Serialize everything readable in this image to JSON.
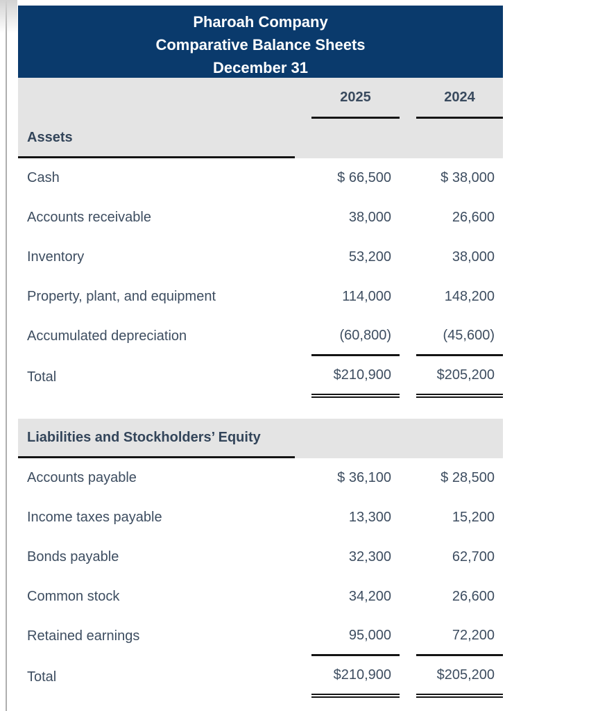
{
  "theme": {
    "header_bg": "#0a3a6c",
    "band_bg": "#e4e4e4",
    "text_color": "#3d4d60"
  },
  "header": {
    "company": "Pharoah Company",
    "title": "Comparative Balance Sheets",
    "date": "December 31"
  },
  "columns": {
    "col1": "2025",
    "col2": "2024"
  },
  "sections": [
    {
      "title": "Assets",
      "rows": [
        {
          "label": "Cash",
          "y2025": "$ 66,500",
          "y2024": "$ 38,000"
        },
        {
          "label": "Accounts receivable",
          "y2025": "38,000",
          "y2024": "26,600"
        },
        {
          "label": "Inventory",
          "y2025": "53,200",
          "y2024": "38,000"
        },
        {
          "label": "Property, plant, and equipment",
          "y2025": "114,000",
          "y2024": "148,200"
        },
        {
          "label": "Accumulated depreciation",
          "y2025": "(60,800)",
          "y2024": "(45,600)"
        }
      ],
      "total": {
        "label": "Total",
        "y2025": "$210,900",
        "y2024": "$205,200"
      }
    },
    {
      "title": "Liabilities and Stockholders’ Equity",
      "rows": [
        {
          "label": "Accounts payable",
          "y2025": "$ 36,100",
          "y2024": "$ 28,500"
        },
        {
          "label": "Income taxes payable",
          "y2025": "13,300",
          "y2024": "15,200"
        },
        {
          "label": "Bonds payable",
          "y2025": "32,300",
          "y2024": "62,700"
        },
        {
          "label": "Common stock",
          "y2025": "34,200",
          "y2024": "26,600"
        },
        {
          "label": "Retained earnings",
          "y2025": "95,000",
          "y2024": "72,200"
        }
      ],
      "total": {
        "label": "Total",
        "y2025": "$210,900",
        "y2024": "$205,200"
      }
    }
  ]
}
